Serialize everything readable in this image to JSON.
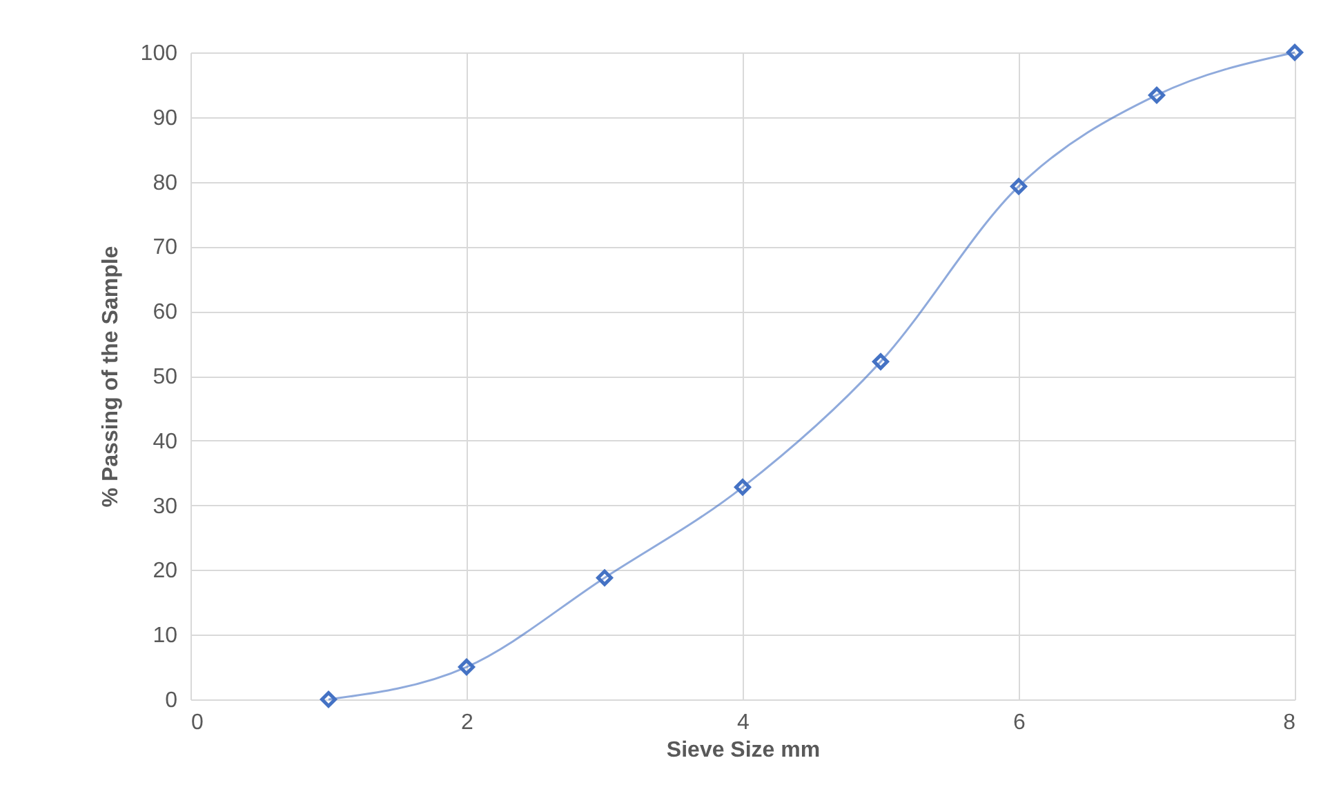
{
  "chart_data": {
    "type": "line",
    "xlabel": "Sieve Size mm",
    "ylabel": "% Passing of the Sample",
    "x": [
      1,
      2,
      3,
      4,
      5,
      6,
      7,
      8
    ],
    "series": [
      {
        "color": "#4472c4",
        "values": [
          0,
          5,
          18.8,
          32.8,
          52.2,
          79.3,
          93.4,
          100
        ]
      }
    ],
    "xlim": [
      0,
      8
    ],
    "xticks": [
      0,
      2,
      4,
      6,
      8
    ],
    "ylim": [
      0,
      100
    ],
    "yticks": [
      0,
      10,
      20,
      30,
      40,
      50,
      60,
      70,
      80,
      90,
      100
    ],
    "grid": true,
    "marker": "diamond"
  }
}
